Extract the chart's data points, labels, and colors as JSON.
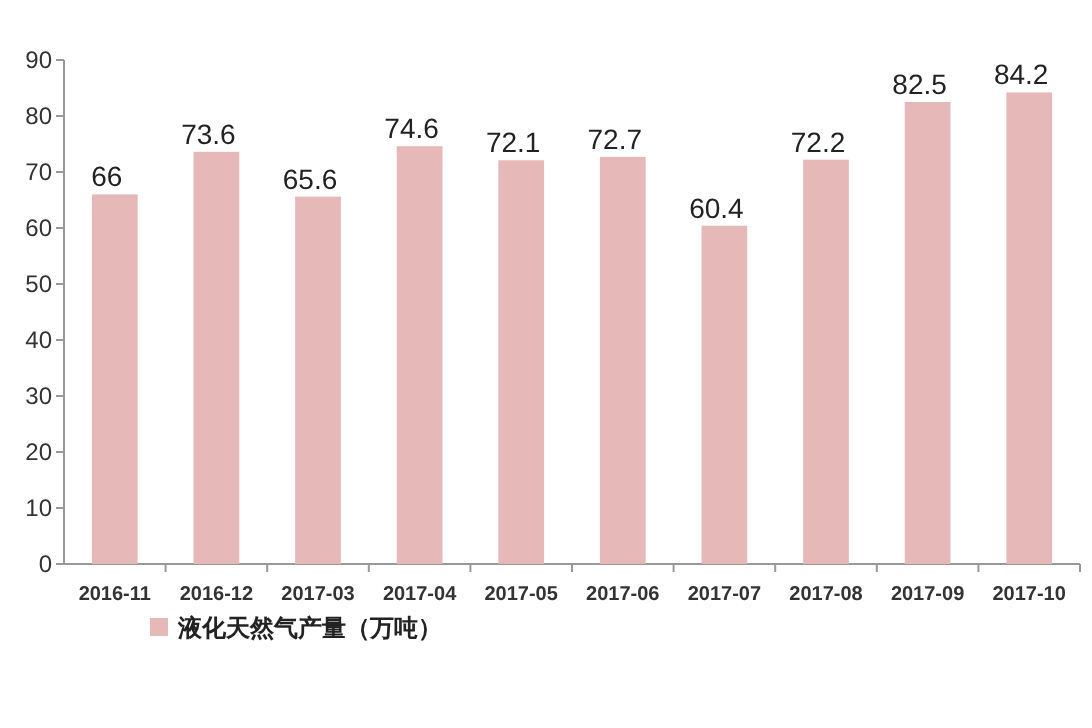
{
  "chart_data": {
    "type": "bar",
    "categories": [
      "2016-11",
      "2016-12",
      "2017-03",
      "2017-04",
      "2017-05",
      "2017-06",
      "2017-07",
      "2017-08",
      "2017-09",
      "2017-10"
    ],
    "series": [
      {
        "name": "液化天然气产量（万吨）",
        "color": "#e6b8b7",
        "values": [
          66,
          73.6,
          65.6,
          74.6,
          72.1,
          72.7,
          60.4,
          72.2,
          82.5,
          84.2
        ]
      }
    ],
    "ylim": [
      0,
      90
    ],
    "yticks": [
      0,
      10,
      20,
      30,
      40,
      50,
      60,
      70,
      80,
      90
    ],
    "data_labels": true,
    "legend": "bottom",
    "grid": false
  }
}
